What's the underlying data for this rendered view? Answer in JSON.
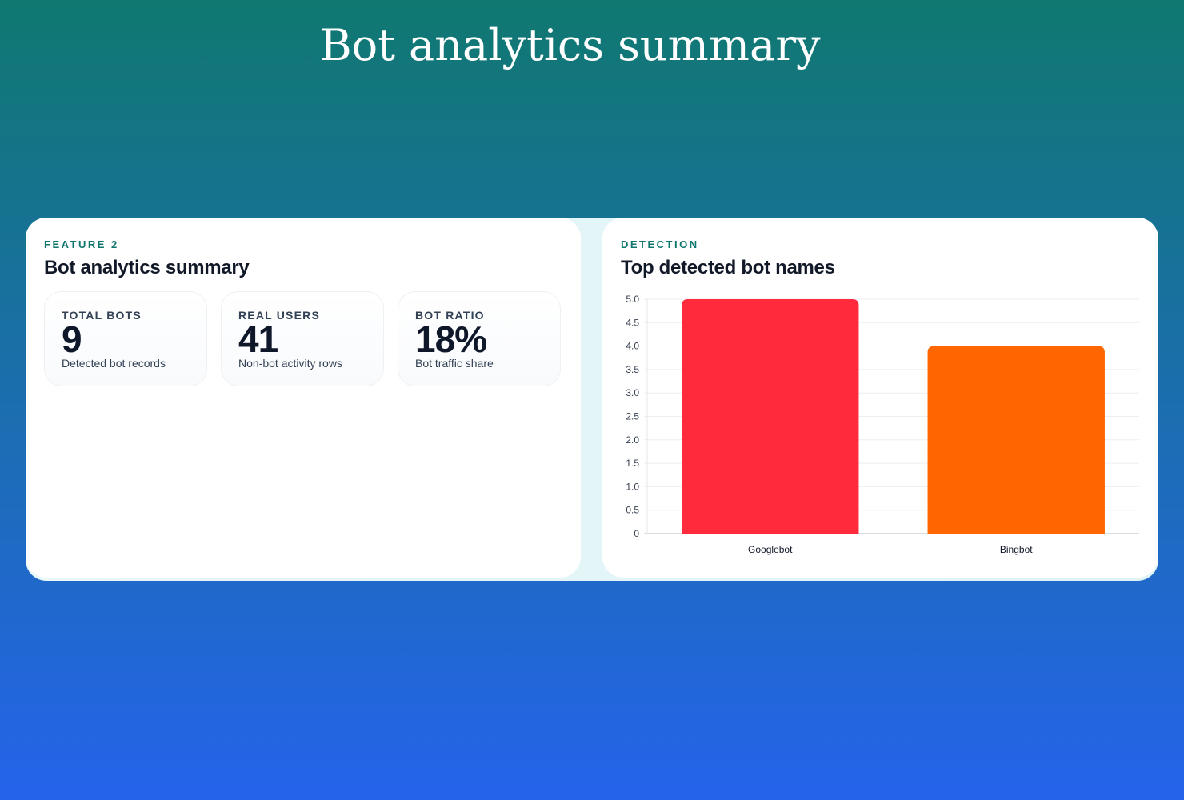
{
  "page_title": "Bot analytics summary",
  "summary_card": {
    "eyebrow": "FEATURE 2",
    "title": "Bot analytics summary",
    "stats": [
      {
        "label": "TOTAL BOTS",
        "value": "9",
        "caption": "Detected bot records"
      },
      {
        "label": "REAL USERS",
        "value": "41",
        "caption": "Non-bot activity rows"
      },
      {
        "label": "BOT RATIO",
        "value": "18%",
        "caption": "Bot traffic share"
      }
    ]
  },
  "chart_card": {
    "eyebrow": "DETECTION",
    "title": "Top detected bot names"
  },
  "chart_data": {
    "type": "bar",
    "categories": [
      "Googlebot",
      "Bingbot"
    ],
    "values": [
      5,
      4
    ],
    "colors": [
      "#ff2a3c",
      "#ff6600"
    ],
    "ylim": [
      0,
      5
    ],
    "yticks": [
      "0",
      "0.5",
      "1.0",
      "1.5",
      "2.0",
      "2.5",
      "3.0",
      "3.5",
      "4.0",
      "4.5",
      "5.0"
    ],
    "grid": true,
    "legend": "none"
  }
}
